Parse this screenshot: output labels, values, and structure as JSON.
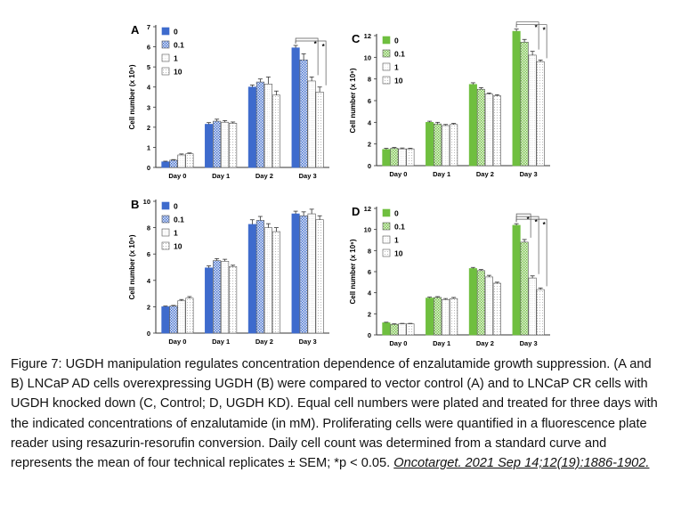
{
  "colors": {
    "blue": "#3e6bcd",
    "green": "#6fbf3f",
    "axis": "#333333",
    "bar_edge": "#555555"
  },
  "legend_labels": [
    "0",
    "0.1",
    "1",
    "10"
  ],
  "chart_data": [
    {
      "panel": "A",
      "type": "bar",
      "title": "",
      "xlabel": "",
      "ylabel": "Cell number (x 10⁶)",
      "color": "blue",
      "categories": [
        "Day 0",
        "Day 1",
        "Day 2",
        "Day 3"
      ],
      "ylim": [
        0,
        7
      ],
      "yticks": [
        "0",
        "1",
        "2",
        "3",
        "4",
        "5",
        "6",
        "7"
      ],
      "grid": false,
      "legend": "top-left",
      "series": [
        {
          "name": "0",
          "values": [
            0.28,
            2.15,
            4.0,
            5.95
          ],
          "errors": [
            0.03,
            0.08,
            0.1,
            0.12
          ]
        },
        {
          "name": "0.1",
          "values": [
            0.36,
            2.3,
            4.25,
            5.35
          ],
          "errors": [
            0.03,
            0.1,
            0.15,
            0.3
          ]
        },
        {
          "name": "1",
          "values": [
            0.62,
            2.25,
            4.15,
            4.3
          ],
          "errors": [
            0.05,
            0.08,
            0.35,
            0.2
          ]
        },
        {
          "name": "10",
          "values": [
            0.68,
            2.2,
            3.6,
            3.75
          ],
          "errors": [
            0.04,
            0.06,
            0.2,
            0.25
          ]
        }
      ],
      "significance": [
        {
          "category": "Day 3",
          "label": "*"
        },
        {
          "category": "Day 3",
          "label": "*"
        }
      ]
    },
    {
      "panel": "B",
      "type": "bar",
      "title": "",
      "xlabel": "",
      "ylabel": "Cell number (x 10⁶)",
      "color": "blue",
      "categories": [
        "Day 0",
        "Day 1",
        "Day 2",
        "Day 3"
      ],
      "ylim": [
        0,
        10
      ],
      "yticks": [
        "0",
        "2",
        "4",
        "6",
        "8",
        "10"
      ],
      "grid": false,
      "legend": "top-left",
      "series": [
        {
          "name": "0",
          "values": [
            2.0,
            4.95,
            8.25,
            9.05
          ],
          "errors": [
            0.05,
            0.15,
            0.35,
            0.2
          ]
        },
        {
          "name": "0.1",
          "values": [
            2.05,
            5.5,
            8.55,
            8.9
          ],
          "errors": [
            0.05,
            0.15,
            0.3,
            0.3
          ]
        },
        {
          "name": "1",
          "values": [
            2.45,
            5.45,
            8.0,
            9.05
          ],
          "errors": [
            0.1,
            0.15,
            0.3,
            0.35
          ]
        },
        {
          "name": "10",
          "values": [
            2.65,
            5.05,
            7.7,
            8.6
          ],
          "errors": [
            0.12,
            0.1,
            0.3,
            0.3
          ]
        }
      ],
      "significance": []
    },
    {
      "panel": "C",
      "type": "bar",
      "title": "",
      "xlabel": "",
      "ylabel": "Cell number (x 10⁶)",
      "color": "green",
      "categories": [
        "Day 0",
        "Day 1",
        "Day 2",
        "Day 3"
      ],
      "ylim": [
        0,
        12
      ],
      "yticks": [
        "0",
        "2",
        "4",
        "6",
        "8",
        "10",
        "12"
      ],
      "grid": false,
      "legend": "top-left",
      "series": [
        {
          "name": "0",
          "values": [
            1.5,
            4.0,
            7.5,
            12.4
          ],
          "errors": [
            0.1,
            0.1,
            0.15,
            0.2
          ]
        },
        {
          "name": "0.1",
          "values": [
            1.6,
            3.85,
            7.05,
            11.4
          ],
          "errors": [
            0.08,
            0.15,
            0.15,
            0.25
          ]
        },
        {
          "name": "1",
          "values": [
            1.55,
            3.7,
            6.6,
            10.2
          ],
          "errors": [
            0.08,
            0.1,
            0.1,
            0.35
          ]
        },
        {
          "name": "10",
          "values": [
            1.55,
            3.8,
            6.45,
            9.6
          ],
          "errors": [
            0.06,
            0.1,
            0.1,
            0.15
          ]
        }
      ],
      "significance": [
        {
          "category": "Day 3",
          "label": "*"
        },
        {
          "category": "Day 3",
          "label": "*"
        }
      ]
    },
    {
      "panel": "D",
      "type": "bar",
      "title": "",
      "xlabel": "",
      "ylabel": "Cell number (x 10⁶)",
      "color": "green",
      "categories": [
        "Day 0",
        "Day 1",
        "Day 2",
        "Day 3"
      ],
      "ylim": [
        0,
        12
      ],
      "yticks": [
        "0",
        "2",
        "4",
        "6",
        "8",
        "10",
        "12"
      ],
      "grid": false,
      "legend": "top-left",
      "series": [
        {
          "name": "0",
          "values": [
            1.15,
            3.5,
            6.3,
            10.4
          ],
          "errors": [
            0.05,
            0.08,
            0.1,
            0.15
          ]
        },
        {
          "name": "0.1",
          "values": [
            1.0,
            3.55,
            6.1,
            8.8
          ],
          "errors": [
            0.05,
            0.08,
            0.1,
            0.25
          ]
        },
        {
          "name": "1",
          "values": [
            1.05,
            3.35,
            5.5,
            5.4
          ],
          "errors": [
            0.04,
            0.1,
            0.15,
            0.2
          ]
        },
        {
          "name": "10",
          "values": [
            1.05,
            3.45,
            4.9,
            4.3
          ],
          "errors": [
            0.04,
            0.1,
            0.1,
            0.15
          ]
        }
      ],
      "significance": [
        {
          "category": "Day 3",
          "label": "*"
        },
        {
          "category": "Day 3",
          "label": "*"
        },
        {
          "category": "Day 3",
          "label": "*"
        }
      ]
    }
  ],
  "caption": {
    "text": "Figure 7: UGDH manipulation regulates concentration dependence of enzalutamide growth suppression. (A and B) LNCaP AD cells overexpressing UGDH (B) were compared to vector control (A) and to LNCaP CR cells with UGDH knocked down (C, Control; D, UGDH KD). Equal cell numbers were plated and treated for three days with the indicated concentrations of enzalutamide (in mM). Proliferating cells were quantified in a fluorescence plate reader using resazurin-resorufin conversion. Daily cell count was determined from a standard curve and represents the mean of four technical replicates ± SEM; *p < 0.05.",
    "citation": "Oncotarget. 2021 Sep 14;12(19):1886-1902."
  }
}
